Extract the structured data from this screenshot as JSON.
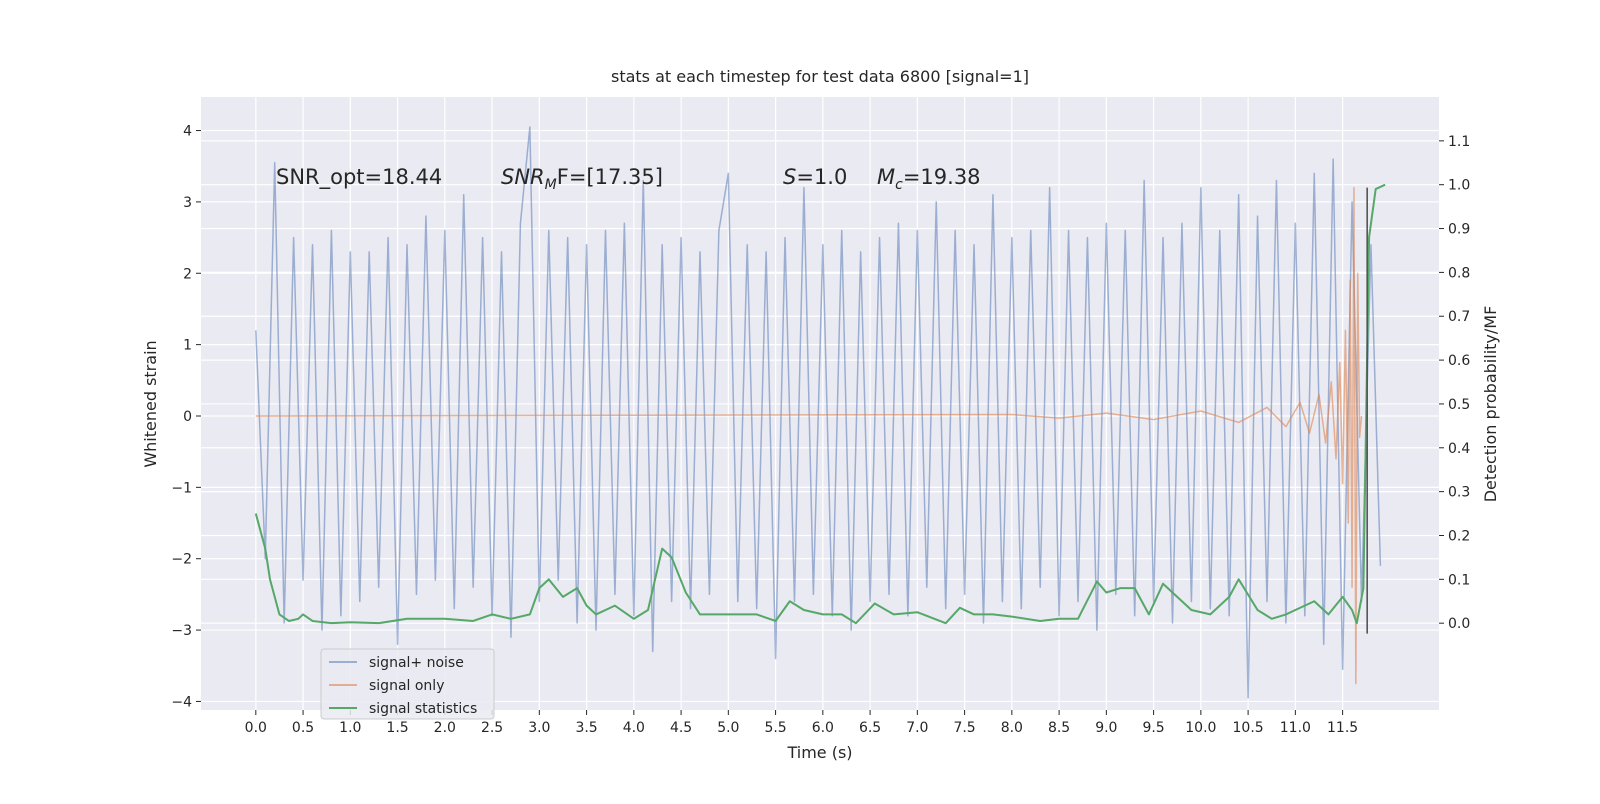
{
  "chart_data": {
    "type": "line",
    "title": "stats at each timestep for test data 6800 [signal=1]",
    "xlabel": "Time (s)",
    "ylabel": "Whitened strain",
    "y2label": "Detection probability/MF",
    "xlim": [
      -0.58,
      12.52
    ],
    "ylim": [
      -4.12,
      4.47
    ],
    "y2lim": [
      -0.198,
      1.2
    ],
    "xticks": [
      {
        "value": 0,
        "label": "0.0"
      },
      0.5,
      {
        "value": 1,
        "label": "1.0"
      },
      1.5,
      {
        "value": 2,
        "label": "2.0"
      },
      2.5,
      {
        "value": 3,
        "label": "3.0"
      },
      3.5,
      {
        "value": 4,
        "label": "4.0"
      },
      4.5,
      {
        "value": 5,
        "label": "5.0"
      },
      5.5,
      {
        "value": 6,
        "label": "6.0"
      },
      6.5,
      {
        "value": 7,
        "label": "7.0"
      },
      7.5,
      {
        "value": 8,
        "label": "8.0"
      },
      8.5,
      {
        "value": 9,
        "label": "9.0"
      },
      9.5,
      {
        "value": 10,
        "label": "10.0"
      },
      10.5,
      {
        "value": 11,
        "label": "11.0"
      },
      11.5
    ],
    "yticks": [
      {
        "value": -4,
        "label": "−4"
      },
      {
        "value": -3,
        "label": "−3"
      },
      {
        "value": -2,
        "label": "−2"
      },
      {
        "value": -1,
        "label": "−1"
      },
      0,
      1,
      2,
      3,
      4
    ],
    "y2ticks": [
      {
        "value": 0,
        "label": "0.0"
      },
      0.1,
      0.2,
      0.3,
      0.4,
      0.5,
      0.6,
      0.7,
      0.8,
      0.9,
      {
        "value": 1,
        "label": "1.0"
      },
      1.1
    ],
    "grid": true,
    "background": "#eaeaf2",
    "legend": "lower left",
    "annotations": [
      {
        "text": "SNR_opt=18.44"
      },
      {
        "text": "SNR",
        "sub": "M",
        "tail": "F=[17.35]"
      },
      {
        "text": "S",
        "tail": "=1.0"
      },
      {
        "text": "M",
        "sub": "c",
        "tail": "=19.38"
      }
    ],
    "vline": {
      "x": 11.76,
      "y": [
        -3.05,
        3.2
      ],
      "color": "#555555"
    },
    "series": [
      {
        "name": "signal+ noise",
        "color": "#4c72b0",
        "alpha": 0.5,
        "x": [
          0,
          0.1,
          0.2,
          0.3,
          0.4,
          0.5,
          0.6,
          0.7,
          0.8,
          0.9,
          1,
          1.1,
          1.2,
          1.3,
          1.4,
          1.5,
          1.6,
          1.7,
          1.8,
          1.9,
          2,
          2.1,
          2.2,
          2.3,
          2.4,
          2.5,
          2.6,
          2.7,
          2.8,
          2.9,
          3,
          3.1,
          3.2,
          3.3,
          3.4,
          3.5,
          3.6,
          3.7,
          3.8,
          3.9,
          4,
          4.1,
          4.2,
          4.3,
          4.4,
          4.5,
          4.6,
          4.7,
          4.8,
          4.9,
          5,
          5.1,
          5.2,
          5.3,
          5.4,
          5.5,
          5.6,
          5.7,
          5.8,
          5.9,
          6,
          6.1,
          6.2,
          6.3,
          6.4,
          6.5,
          6.6,
          6.7,
          6.8,
          6.9,
          7,
          7.1,
          7.2,
          7.3,
          7.4,
          7.5,
          7.6,
          7.7,
          7.8,
          7.9,
          8,
          8.1,
          8.2,
          8.3,
          8.4,
          8.5,
          8.6,
          8.7,
          8.8,
          8.9,
          9,
          9.1,
          9.2,
          9.3,
          9.4,
          9.5,
          9.6,
          9.7,
          9.8,
          9.9,
          10,
          10.1,
          10.2,
          10.3,
          10.4,
          10.5,
          10.6,
          10.7,
          10.8,
          10.9,
          11,
          11.1,
          11.2,
          11.3,
          11.4,
          11.5,
          11.6,
          11.7,
          11.8,
          11.9
        ],
        "values": [
          1.2,
          -2.0,
          3.55,
          -2.9,
          2.5,
          -2.3,
          2.4,
          -3.0,
          2.6,
          -2.8,
          2.3,
          -2.6,
          2.3,
          -2.4,
          2.5,
          -3.2,
          2.4,
          -2.5,
          2.8,
          -2.3,
          2.6,
          -2.7,
          3.1,
          -2.4,
          2.5,
          -2.8,
          2.3,
          -3.1,
          2.7,
          4.05,
          -2.6,
          2.6,
          -2.3,
          2.5,
          -2.9,
          2.4,
          -3.0,
          2.6,
          -2.5,
          2.7,
          -2.8,
          3.3,
          -3.3,
          2.4,
          -2.6,
          2.5,
          -2.7,
          2.3,
          -2.5,
          2.6,
          3.4,
          -2.6,
          2.4,
          -2.7,
          2.3,
          -3.4,
          2.5,
          -2.6,
          3.2,
          -2.5,
          2.4,
          -2.8,
          2.6,
          -3.0,
          2.3,
          -2.6,
          2.5,
          -2.5,
          2.7,
          -2.8,
          2.6,
          -2.4,
          3.0,
          -2.7,
          2.6,
          -2.5,
          2.4,
          -2.9,
          3.1,
          -2.6,
          2.5,
          -2.7,
          2.6,
          -2.4,
          3.2,
          -2.8,
          2.6,
          -2.6,
          2.5,
          -3.0,
          2.7,
          -2.5,
          2.6,
          -2.8,
          3.3,
          -2.6,
          2.5,
          -2.9,
          2.7,
          -2.6,
          3.2,
          -2.7,
          2.6,
          -2.8,
          3.1,
          -3.95,
          2.8,
          -2.6,
          3.3,
          -2.9,
          2.7,
          -2.8,
          3.4,
          -3.2,
          3.6,
          -3.55,
          3.0,
          -2.6,
          2.4,
          -2.1
        ]
      },
      {
        "name": "signal only",
        "color": "#dd8452",
        "alpha": 0.6,
        "x": [
          0,
          8.0,
          8.5,
          9.0,
          9.5,
          10.0,
          10.4,
          10.7,
          10.9,
          11.05,
          11.15,
          11.25,
          11.32,
          11.38,
          11.43,
          11.47,
          11.5,
          11.53,
          11.56,
          11.58,
          11.6,
          11.62,
          11.64,
          11.66,
          11.68,
          11.7
        ],
        "values": [
          0,
          0.02,
          -0.03,
          0.04,
          -0.05,
          0.07,
          -0.09,
          0.12,
          -0.15,
          0.19,
          -0.24,
          0.3,
          -0.38,
          0.48,
          -0.6,
          0.75,
          -0.95,
          1.2,
          -1.5,
          1.9,
          -2.4,
          3.2,
          -3.75,
          2.0,
          -0.3,
          0
        ]
      },
      {
        "name": "signal statistics",
        "color": "#55a868",
        "alpha": 1,
        "axis": "y2",
        "x": [
          0,
          0.1,
          0.15,
          0.25,
          0.35,
          0.45,
          0.5,
          0.6,
          0.8,
          1.0,
          1.3,
          1.6,
          2.0,
          2.3,
          2.5,
          2.7,
          2.9,
          3.0,
          3.1,
          3.25,
          3.4,
          3.5,
          3.6,
          3.8,
          4.0,
          4.15,
          4.3,
          4.4,
          4.55,
          4.7,
          5.0,
          5.3,
          5.5,
          5.65,
          5.8,
          6.0,
          6.2,
          6.35,
          6.55,
          6.75,
          7.0,
          7.3,
          7.45,
          7.6,
          7.8,
          8.0,
          8.3,
          8.5,
          8.7,
          8.9,
          9.0,
          9.15,
          9.3,
          9.45,
          9.6,
          9.75,
          9.9,
          10.1,
          10.3,
          10.4,
          10.6,
          10.75,
          10.9,
          11.0,
          11.2,
          11.35,
          11.5,
          11.6,
          11.65,
          11.72,
          11.78,
          11.85,
          11.95
        ],
        "values": [
          0.25,
          0.17,
          0.1,
          0.02,
          0.005,
          0.01,
          0.02,
          0.005,
          0.0,
          0.002,
          0.0,
          0.01,
          0.01,
          0.005,
          0.02,
          0.01,
          0.02,
          0.08,
          0.1,
          0.06,
          0.08,
          0.04,
          0.02,
          0.04,
          0.01,
          0.03,
          0.17,
          0.15,
          0.07,
          0.02,
          0.02,
          0.02,
          0.005,
          0.05,
          0.03,
          0.02,
          0.02,
          0.0,
          0.045,
          0.02,
          0.025,
          0.0,
          0.035,
          0.02,
          0.02,
          0.015,
          0.005,
          0.01,
          0.01,
          0.095,
          0.07,
          0.08,
          0.08,
          0.02,
          0.09,
          0.06,
          0.03,
          0.02,
          0.06,
          0.1,
          0.03,
          0.01,
          0.02,
          0.03,
          0.05,
          0.02,
          0.06,
          0.03,
          0.0,
          0.08,
          0.88,
          0.99,
          1.0
        ]
      }
    ]
  }
}
